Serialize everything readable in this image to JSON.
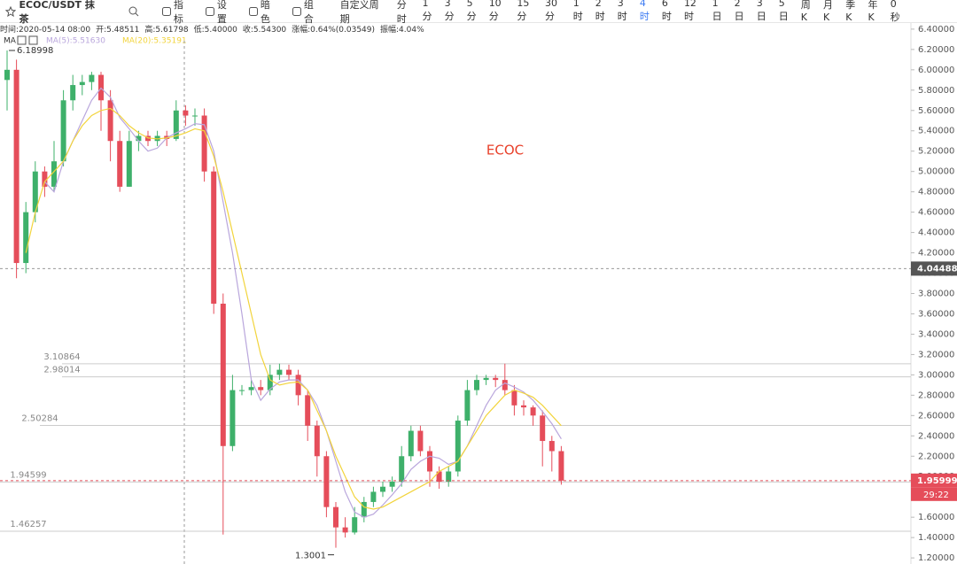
{
  "toolbar": {
    "symbol": "ECOC/USDT 抹茶",
    "items": [
      "指标",
      "设置",
      "暗色",
      "组合"
    ],
    "periods": [
      "自定义周期",
      "分时",
      "1分",
      "3分",
      "5分",
      "10分",
      "15分",
      "30分",
      "1时",
      "2时",
      "3时",
      "4时",
      "6时",
      "12时",
      "1日",
      "2日",
      "3日",
      "5日",
      "周K",
      "月K",
      "季K",
      "年K"
    ],
    "active_period": "4时",
    "timer": "0秒"
  },
  "info": [
    "时间:2020-05-14 08:00",
    "开:5.48511",
    "高:5.61798",
    "低:5.40000",
    "收:5.54300",
    "涨幅:0.64%(0.03549)",
    "振幅:4.04%"
  ],
  "legend": {
    "label": "MA",
    "ma5": "MA(5):5.51630",
    "ma20": "MA(20):5.35191"
  },
  "chart_data": {
    "type": "candlestick",
    "annotation": "ECOC",
    "up_color": "#3eb06a",
    "down_color": "#e54d5a",
    "open": [
      5.9,
      6.0,
      4.1,
      4.6,
      5.0,
      4.85,
      5.1,
      5.7,
      5.85,
      5.88,
      5.95,
      5.7,
      5.3,
      4.85,
      5.3,
      5.35,
      5.3,
      5.35,
      5.32,
      5.6,
      5.55,
      5.55,
      5.0,
      3.7,
      2.3,
      2.85,
      2.85,
      2.88,
      2.85,
      3.0,
      3.05,
      3.0,
      2.8,
      2.5,
      2.2,
      1.7,
      1.5,
      1.45,
      1.6,
      1.75,
      1.85,
      1.9,
      1.95,
      2.2,
      2.45,
      2.25,
      2.05,
      1.95,
      2.05,
      2.55,
      2.85,
      2.95,
      2.97,
      2.95,
      2.85,
      2.7,
      2.68,
      2.6,
      2.35,
      2.25
    ],
    "high": [
      6.19,
      6.1,
      4.7,
      5.1,
      5.05,
      5.3,
      5.8,
      5.95,
      5.95,
      5.98,
      5.98,
      5.8,
      5.4,
      5.4,
      5.4,
      5.4,
      5.4,
      5.4,
      5.7,
      5.65,
      5.62,
      5.62,
      5.05,
      3.8,
      3.0,
      2.9,
      2.95,
      2.95,
      3.1,
      3.11,
      3.1,
      3.05,
      2.85,
      2.55,
      2.25,
      1.75,
      1.6,
      1.7,
      1.8,
      1.9,
      1.95,
      2.0,
      2.3,
      2.5,
      2.5,
      2.3,
      2.1,
      2.1,
      2.6,
      2.95,
      3.0,
      3.0,
      3.0,
      3.11,
      2.9,
      2.75,
      2.7,
      2.65,
      2.4,
      2.3
    ],
    "low": [
      5.6,
      3.95,
      4.0,
      4.5,
      4.75,
      4.8,
      5.05,
      5.6,
      5.75,
      5.8,
      5.4,
      5.1,
      4.8,
      4.85,
      5.2,
      5.25,
      5.25,
      5.25,
      5.3,
      5.45,
      5.45,
      4.9,
      3.6,
      1.43,
      2.25,
      2.8,
      2.8,
      2.8,
      2.8,
      2.95,
      2.95,
      2.7,
      2.35,
      2.0,
      1.6,
      1.3,
      1.4,
      1.43,
      1.55,
      1.7,
      1.8,
      1.85,
      1.9,
      2.15,
      2.2,
      1.9,
      1.88,
      1.9,
      2.0,
      2.5,
      2.8,
      2.9,
      2.88,
      2.8,
      2.6,
      2.6,
      2.5,
      2.1,
      2.05,
      1.92
    ],
    "close": [
      6.0,
      4.1,
      4.6,
      5.0,
      4.85,
      5.1,
      5.7,
      5.85,
      5.88,
      5.95,
      5.7,
      5.3,
      4.85,
      5.3,
      5.35,
      5.3,
      5.35,
      5.32,
      5.6,
      5.55,
      5.55,
      5.0,
      3.7,
      2.3,
      2.85,
      2.85,
      2.88,
      2.85,
      3.0,
      3.05,
      3.0,
      2.8,
      2.5,
      2.2,
      1.7,
      1.5,
      1.45,
      1.6,
      1.75,
      1.85,
      1.9,
      1.95,
      2.2,
      2.45,
      2.25,
      2.05,
      1.95,
      2.05,
      2.55,
      2.85,
      2.95,
      2.97,
      2.95,
      2.85,
      2.7,
      2.68,
      2.6,
      2.35,
      2.25,
      1.96
    ],
    "series": [
      {
        "name": "MA(5)",
        "color": "#b9a6dc",
        "values": [
          null,
          null,
          null,
          null,
          4.9,
          4.8,
          5.1,
          5.3,
          5.5,
          5.7,
          5.82,
          5.73,
          5.53,
          5.42,
          5.3,
          5.2,
          5.23,
          5.33,
          5.38,
          5.42,
          5.47,
          5.46,
          5.2,
          4.7,
          4.2,
          3.6,
          2.95,
          2.75,
          2.86,
          2.93,
          2.95,
          2.95,
          2.85,
          2.7,
          2.45,
          2.15,
          1.85,
          1.65,
          1.6,
          1.63,
          1.72,
          1.82,
          1.93,
          2.07,
          2.15,
          2.2,
          2.18,
          2.12,
          2.15,
          2.3,
          2.5,
          2.7,
          2.85,
          2.92,
          2.88,
          2.83,
          2.75,
          2.64,
          2.52,
          2.37
        ]
      },
      {
        "name": "MA(20)",
        "color": "#f2d43c",
        "values": [
          null,
          null,
          4.2,
          4.6,
          4.9,
          5.0,
          5.1,
          5.3,
          5.45,
          5.55,
          5.6,
          5.62,
          5.55,
          5.45,
          5.38,
          5.33,
          5.32,
          5.33,
          5.35,
          5.38,
          5.42,
          5.4,
          5.15,
          4.8,
          4.4,
          4.0,
          3.6,
          3.2,
          2.95,
          2.9,
          2.92,
          2.93,
          2.85,
          2.65,
          2.45,
          2.2,
          2.0,
          1.8,
          1.7,
          1.68,
          1.7,
          1.75,
          1.8,
          1.85,
          1.9,
          1.95,
          2.05,
          2.1,
          2.15,
          2.3,
          2.45,
          2.6,
          2.7,
          2.8,
          2.85,
          2.82,
          2.78,
          2.7,
          2.6,
          2.5
        ]
      }
    ],
    "levels": [
      3.10864,
      2.98014,
      2.50284,
      1.94599,
      1.46257
    ],
    "max_marker": 6.18998,
    "min_marker": 1.3001,
    "crosshair_price": 4.04488,
    "last_price": 1.95999,
    "countdown": "29:22",
    "ylim": [
      1.14,
      6.46
    ],
    "yticks": [
      {
        "value": 1.2,
        "label": "1.20000"
      },
      {
        "value": 1.4,
        "label": "1.40000"
      },
      {
        "value": 1.6,
        "label": "1.60000"
      },
      {
        "value": 1.8,
        "label": "1.80000"
      },
      {
        "value": 2.0,
        "label": "2.00000"
      },
      {
        "value": 2.2,
        "label": "2.20000"
      },
      {
        "value": 2.4,
        "label": "2.40000"
      },
      {
        "value": 2.6,
        "label": "2.60000"
      },
      {
        "value": 2.8,
        "label": "2.80000"
      },
      {
        "value": 3.0,
        "label": "3.00000"
      },
      {
        "value": 3.2,
        "label": "3.20000"
      },
      {
        "value": 3.4,
        "label": "3.40000"
      },
      {
        "value": 3.6,
        "label": "3.60000"
      },
      {
        "value": 3.8,
        "label": "3.80000"
      },
      {
        "value": 4.0,
        "label": "4.00000"
      },
      {
        "value": 4.2,
        "label": "4.20000"
      },
      {
        "value": 4.4,
        "label": "4.40000"
      },
      {
        "value": 4.6,
        "label": "4.60000"
      },
      {
        "value": 4.8,
        "label": "4.80000"
      },
      {
        "value": 5.0,
        "label": "5.00000"
      },
      {
        "value": 5.2,
        "label": "5.20000"
      },
      {
        "value": 5.4,
        "label": "5.40000"
      },
      {
        "value": 5.6,
        "label": "5.60000"
      },
      {
        "value": 5.8,
        "label": "5.80000"
      },
      {
        "value": 6.0,
        "label": "6.00000"
      },
      {
        "value": 6.2,
        "label": "6.20000"
      },
      {
        "value": 6.4,
        "label": "6.40000"
      }
    ]
  }
}
